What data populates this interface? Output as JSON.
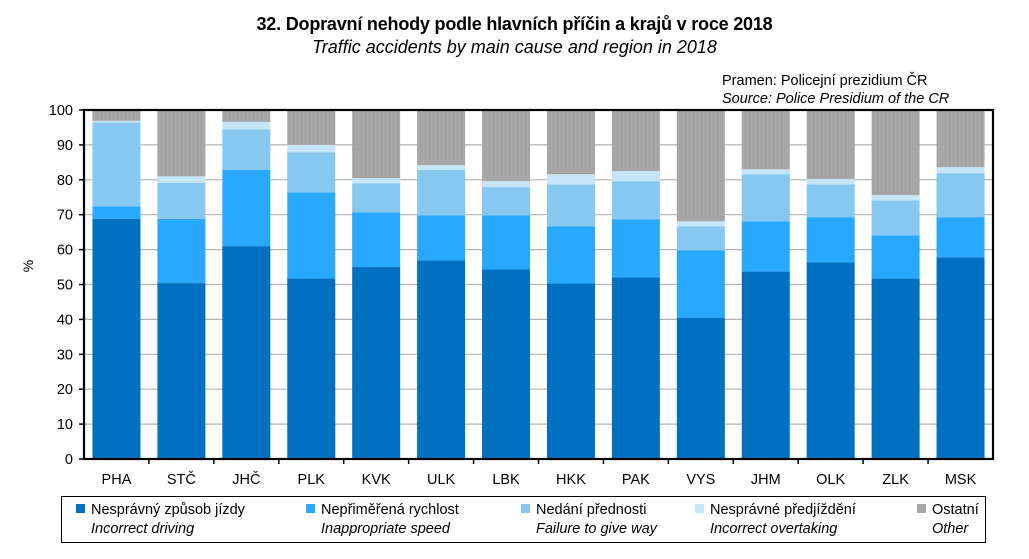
{
  "chart_data": {
    "type": "bar",
    "stacked": true,
    "title": "32. Dopravní nehody podle hlavních příčin a krajů v roce 2018",
    "subtitle": "Traffic accidents by main cause and region in 2018",
    "source_cz": "Pramen: Policejní prezidium ČR",
    "source_en": "Source: Police Presidium of the CR",
    "xlabel": "",
    "ylabel": "%",
    "ylim": [
      0,
      100
    ],
    "yticks": [
      0,
      10,
      20,
      30,
      40,
      50,
      60,
      70,
      80,
      90,
      100
    ],
    "grid": true,
    "legend_position": "bottom",
    "categories": [
      "PHA",
      "STČ",
      "JHČ",
      "PLK",
      "KVK",
      "ULK",
      "LBK",
      "HKK",
      "PAK",
      "VYS",
      "JHM",
      "OLK",
      "ZLK",
      "MSK"
    ],
    "series": [
      {
        "name": "Nesprávný způsob jízdy",
        "name_en": "Incorrect driving",
        "color": "#0070c0",
        "values": [
          68.8,
          50.4,
          61.0,
          51.7,
          55.0,
          56.9,
          54.3,
          50.3,
          52.0,
          40.5,
          53.7,
          56.3,
          51.7,
          57.8
        ]
      },
      {
        "name": "Nepřiměřená rychlost",
        "name_en": "Inappropriate speed",
        "color": "#29a8ff",
        "values": [
          3.6,
          18.4,
          21.8,
          24.7,
          15.7,
          12.9,
          15.5,
          16.4,
          16.7,
          19.3,
          14.4,
          13.0,
          12.4,
          11.5
        ]
      },
      {
        "name": "Nedání přednosti",
        "name_en": "Failure to give way",
        "color": "#86c8f0",
        "values": [
          24.0,
          10.3,
          11.7,
          11.5,
          8.3,
          13.0,
          8.1,
          12.0,
          10.9,
          6.9,
          13.5,
          9.4,
          10.0,
          12.6
        ]
      },
      {
        "name": "Nesprávné předjíždění",
        "name_en": "Incorrect overtaking",
        "color": "#c5e5f8",
        "values": [
          0.5,
          1.9,
          2.1,
          2.1,
          1.5,
          1.4,
          1.7,
          2.9,
          2.9,
          1.4,
          1.4,
          1.5,
          1.5,
          1.7
        ]
      },
      {
        "name": "Ostatní",
        "name_en": "Other",
        "color": "#a6a6a6",
        "values": [
          3.1,
          19.0,
          3.4,
          10.0,
          19.5,
          15.8,
          20.4,
          18.4,
          17.5,
          31.9,
          17.0,
          19.8,
          24.4,
          16.4
        ]
      }
    ]
  }
}
